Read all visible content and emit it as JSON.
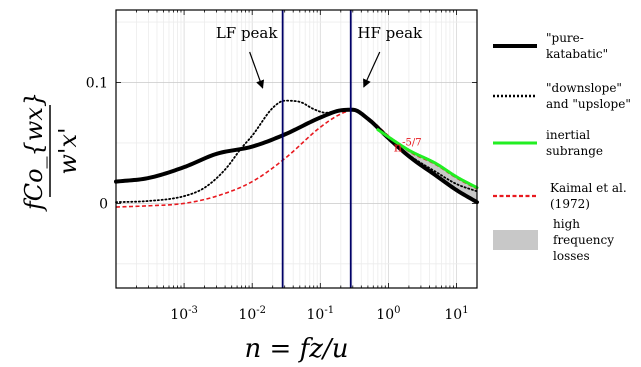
{
  "chart_data": {
    "type": "line",
    "xscale": "log",
    "xlim": [
      0.0001,
      20
    ],
    "ylim": [
      -0.07,
      0.16
    ],
    "xlabel": "n = fz/u",
    "ylabel_top": "fCo_{wx}",
    "ylabel_bottom": "w'x'",
    "x_ticks": [
      {
        "value": 0.001,
        "base": "10",
        "exp": "-3"
      },
      {
        "value": 0.01,
        "base": "10",
        "exp": "-2"
      },
      {
        "value": 0.1,
        "base": "10",
        "exp": "-1"
      },
      {
        "value": 1,
        "base": "10",
        "exp": "0"
      },
      {
        "value": 10,
        "base": "10",
        "exp": "1"
      }
    ],
    "y_ticks": [
      {
        "value": 0,
        "label": "0"
      },
      {
        "value": 0.1,
        "label": "0.1"
      }
    ],
    "grid": true,
    "vlines": [
      {
        "x": 0.028,
        "label": "LF peak",
        "color": "#000066"
      },
      {
        "x": 0.28,
        "label": "HF peak",
        "color": "#000066"
      }
    ],
    "annotation": {
      "base": "n",
      "exp": "-5/7",
      "x": 1.2,
      "y": 0.043,
      "color": "#e8191f"
    },
    "series": [
      {
        "name": "\"pure-katabatic\"",
        "style": "solid",
        "color": "#000000",
        "width": 4,
        "x": [
          0.0001,
          0.0003,
          0.001,
          0.003,
          0.01,
          0.03,
          0.1,
          0.2,
          0.3,
          0.5,
          1,
          2,
          5,
          10,
          20
        ],
        "y": [
          0.018,
          0.021,
          0.03,
          0.041,
          0.047,
          0.057,
          0.071,
          0.077,
          0.0775,
          0.07,
          0.054,
          0.039,
          0.023,
          0.011,
          0.001
        ]
      },
      {
        "name": "\"downslope\" and \"upslope\"",
        "style": "dotted",
        "color": "#000000",
        "width": 2,
        "x": [
          0.0001,
          0.0003,
          0.001,
          0.002,
          0.004,
          0.007,
          0.01,
          0.02,
          0.03,
          0.05,
          0.08,
          0.12,
          0.2,
          0.3,
          0.5,
          1,
          2,
          5,
          10,
          20
        ],
        "y": [
          0.001,
          0.002,
          0.006,
          0.013,
          0.028,
          0.046,
          0.056,
          0.079,
          0.085,
          0.084,
          0.078,
          0.075,
          0.077,
          0.077,
          0.069,
          0.054,
          0.04,
          0.026,
          0.016,
          0.01
        ]
      },
      {
        "name": "inertial subrange",
        "style": "solid",
        "color": "#22ee22",
        "width": 3,
        "x": [
          0.7,
          1,
          2,
          5,
          10,
          20
        ],
        "y": [
          0.061,
          0.055,
          0.044,
          0.033,
          0.022,
          0.013
        ]
      },
      {
        "name": "Kaimal et al. (1972)",
        "style": "dashed",
        "color": "#e8191f",
        "width": 2,
        "x": [
          0.0001,
          0.0003,
          0.001,
          0.003,
          0.01,
          0.03,
          0.1,
          0.2,
          0.3,
          0.5,
          1,
          2,
          5,
          10,
          20
        ],
        "y": [
          -0.003,
          -0.002,
          0.0,
          0.006,
          0.018,
          0.037,
          0.063,
          0.074,
          0.077,
          0.071,
          0.056,
          0.043,
          0.032,
          0.021,
          0.012
        ]
      }
    ],
    "shaded_region": {
      "name": "high frequency losses",
      "color": "#c8c8c8",
      "x_from": 0.5,
      "x_to": 20
    },
    "legend": {
      "placement": "right",
      "entries": [
        {
          "line1": "\"pure-",
          "line2": "katabatic\"",
          "line3": ""
        },
        {
          "line1": "\"downslope\"",
          "line2": "and \"upslope\"",
          "line3": ""
        },
        {
          "line1": "inertial",
          "line2": "subrange",
          "line3": ""
        },
        {
          "line1": "Kaimal et al.",
          "line2": "(1972)",
          "line3": ""
        },
        {
          "line1": "high",
          "line2": "frequency",
          "line3": "losses"
        }
      ]
    }
  }
}
